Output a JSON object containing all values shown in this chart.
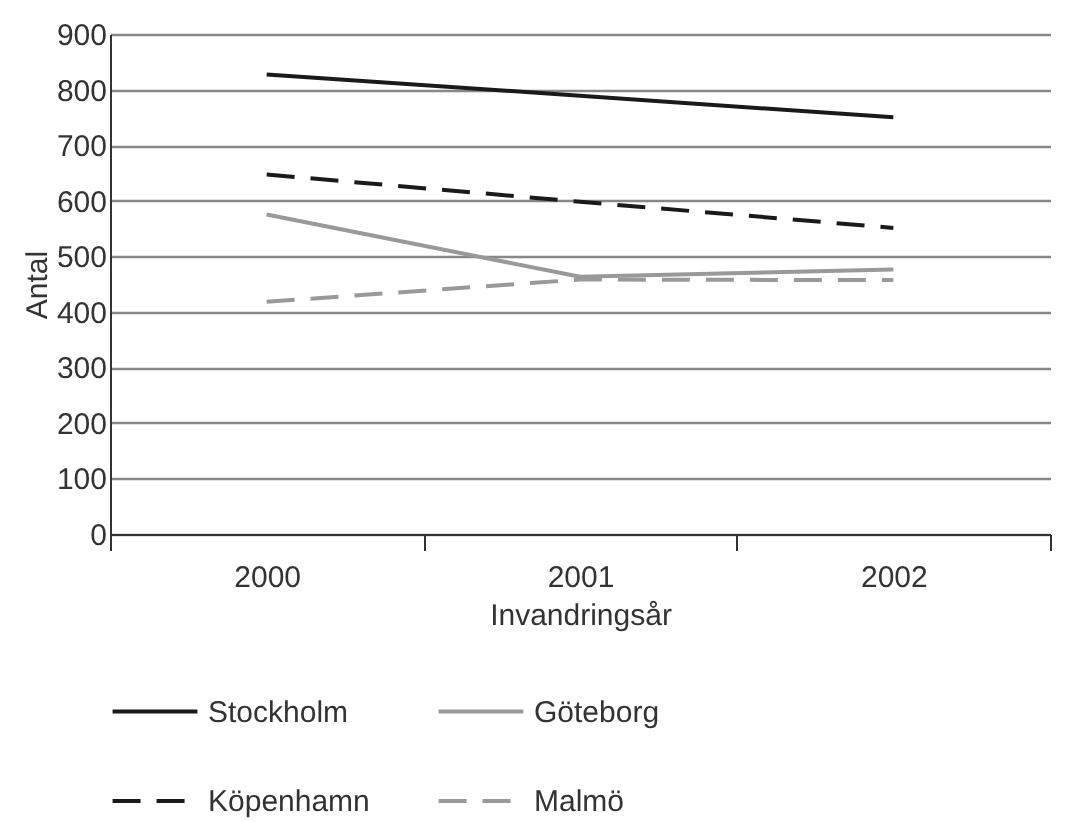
{
  "chart_data": {
    "type": "line",
    "xlabel": "Invandringsår",
    "ylabel": "Antal",
    "categories": [
      "2000",
      "2001",
      "2002"
    ],
    "series": [
      {
        "name": "Stockholm",
        "color": "#1a1a1a",
        "line_style": "solid",
        "values": [
          827,
          789,
          750
        ]
      },
      {
        "name": "Göteborg",
        "color": "#999999",
        "line_style": "solid",
        "values": [
          575,
          463,
          476
        ]
      },
      {
        "name": "Köpenhamn",
        "color": "#1a1a1a",
        "line_style": "dashed",
        "values": [
          647,
          598,
          551
        ]
      },
      {
        "name": "Malmö",
        "color": "#999999",
        "line_style": "dashed",
        "values": [
          418,
          458,
          457
        ]
      }
    ],
    "ylim": [
      0,
      900
    ],
    "yticks": [
      0,
      100,
      200,
      300,
      400,
      500,
      600,
      700,
      800,
      900
    ],
    "grid": "y",
    "legend": "bottom",
    "marker": "none"
  }
}
